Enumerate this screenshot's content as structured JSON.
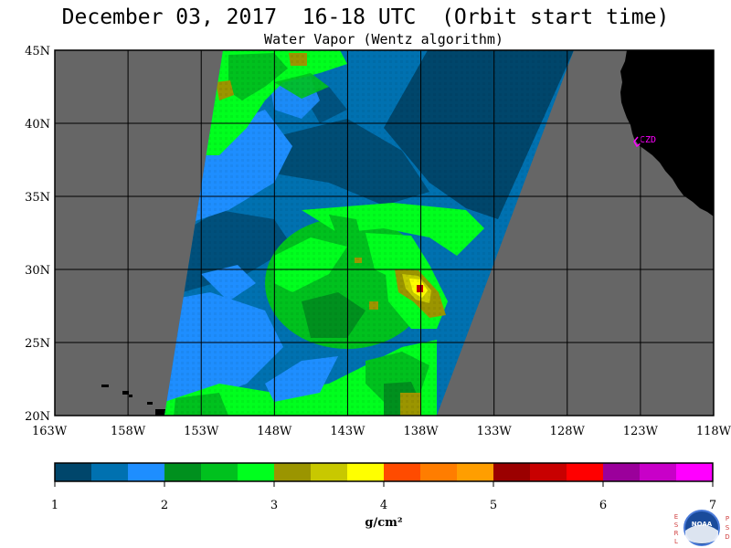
{
  "title": "December 03, 2017  16-18 UTC  (Orbit start time)",
  "subtitle": "Water Vapor (Wentz algorithm)",
  "lat_labels": [
    "45N",
    "40N",
    "35N",
    "30N",
    "25N",
    "20N"
  ],
  "lon_labels": [
    "163W",
    "158W",
    "153W",
    "148W",
    "143W",
    "138W",
    "133W",
    "128W",
    "123W",
    "118W"
  ],
  "station_label": "CZD",
  "colorbar": {
    "colors": [
      "#00466b",
      "#0071b0",
      "#1e8eff",
      "#00901e",
      "#00c11e",
      "#00ff1e",
      "#9b9500",
      "#c8c800",
      "#ffff00",
      "#ff4b00",
      "#ff7d00",
      "#ff9e00",
      "#9b0000",
      "#c80000",
      "#ff0000",
      "#9b009b",
      "#c800c8",
      "#ff00ff"
    ],
    "tick_labels": [
      "1",
      "2",
      "3",
      "4",
      "5",
      "6",
      "7"
    ],
    "unit_label": "g/cm²"
  },
  "badge": {
    "left_letters": "ESRL",
    "right_letters": "PSD",
    "logo_text": "NOAA"
  },
  "colors": {
    "ocean_no_data": "#666666",
    "land": "#000000",
    "station": "#ff00ff"
  }
}
